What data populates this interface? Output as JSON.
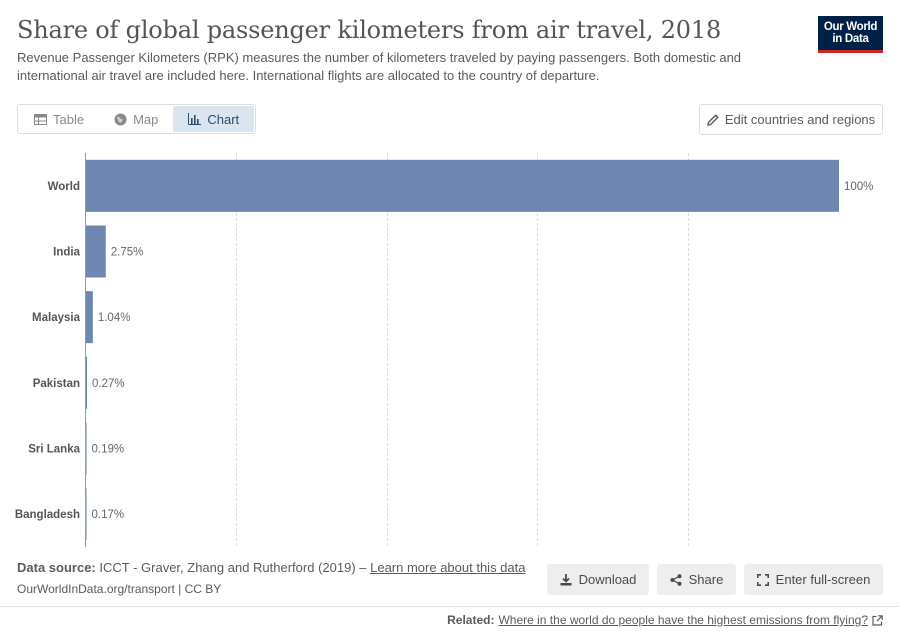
{
  "header": {
    "title": "Share of global passenger kilometers from air travel, 2018",
    "subtitle": "Revenue Passenger Kilometers (RPK) measures the number of kilometers traveled by paying passengers. Both domestic and international air travel are included here. International flights are allocated to the country of departure.",
    "logo_line1": "Our World",
    "logo_line2": "in Data"
  },
  "tabs": [
    {
      "label": "Table",
      "icon": "table-icon"
    },
    {
      "label": "Map",
      "icon": "globe-icon"
    },
    {
      "label": "Chart",
      "icon": "chart-icon",
      "active": true
    }
  ],
  "edit_countries_label": "Edit countries and regions",
  "chart_data": {
    "type": "bar",
    "orientation": "horizontal",
    "categories": [
      "World",
      "India",
      "Malaysia",
      "Pakistan",
      "Sri Lanka",
      "Bangladesh"
    ],
    "values": [
      100,
      2.75,
      1.04,
      0.27,
      0.19,
      0.17
    ],
    "value_labels": [
      "100%",
      "2.75%",
      "1.04%",
      "0.27%",
      "0.19%",
      "0.17%"
    ],
    "xlim": [
      0,
      100
    ],
    "grid": true,
    "bar_color": "#6d87b1",
    "title": "",
    "xlabel": "",
    "ylabel": ""
  },
  "footer": {
    "source_label": "Data source:",
    "source_text": "ICCT - Graver, Zhang and Rutherford (2019) –",
    "learn_more": "Learn more about this data",
    "url_text": "OurWorldInData.org/transport | CC BY",
    "download": "Download",
    "share": "Share",
    "fullscreen": "Enter full-screen",
    "related_label": "Related:",
    "related_link": "Where in the world do people have the highest emissions from flying?"
  },
  "colors": {
    "logo_bg": "#002147",
    "logo_accent": "#ce261e",
    "active_tab_bg": "#dbe5f0"
  }
}
